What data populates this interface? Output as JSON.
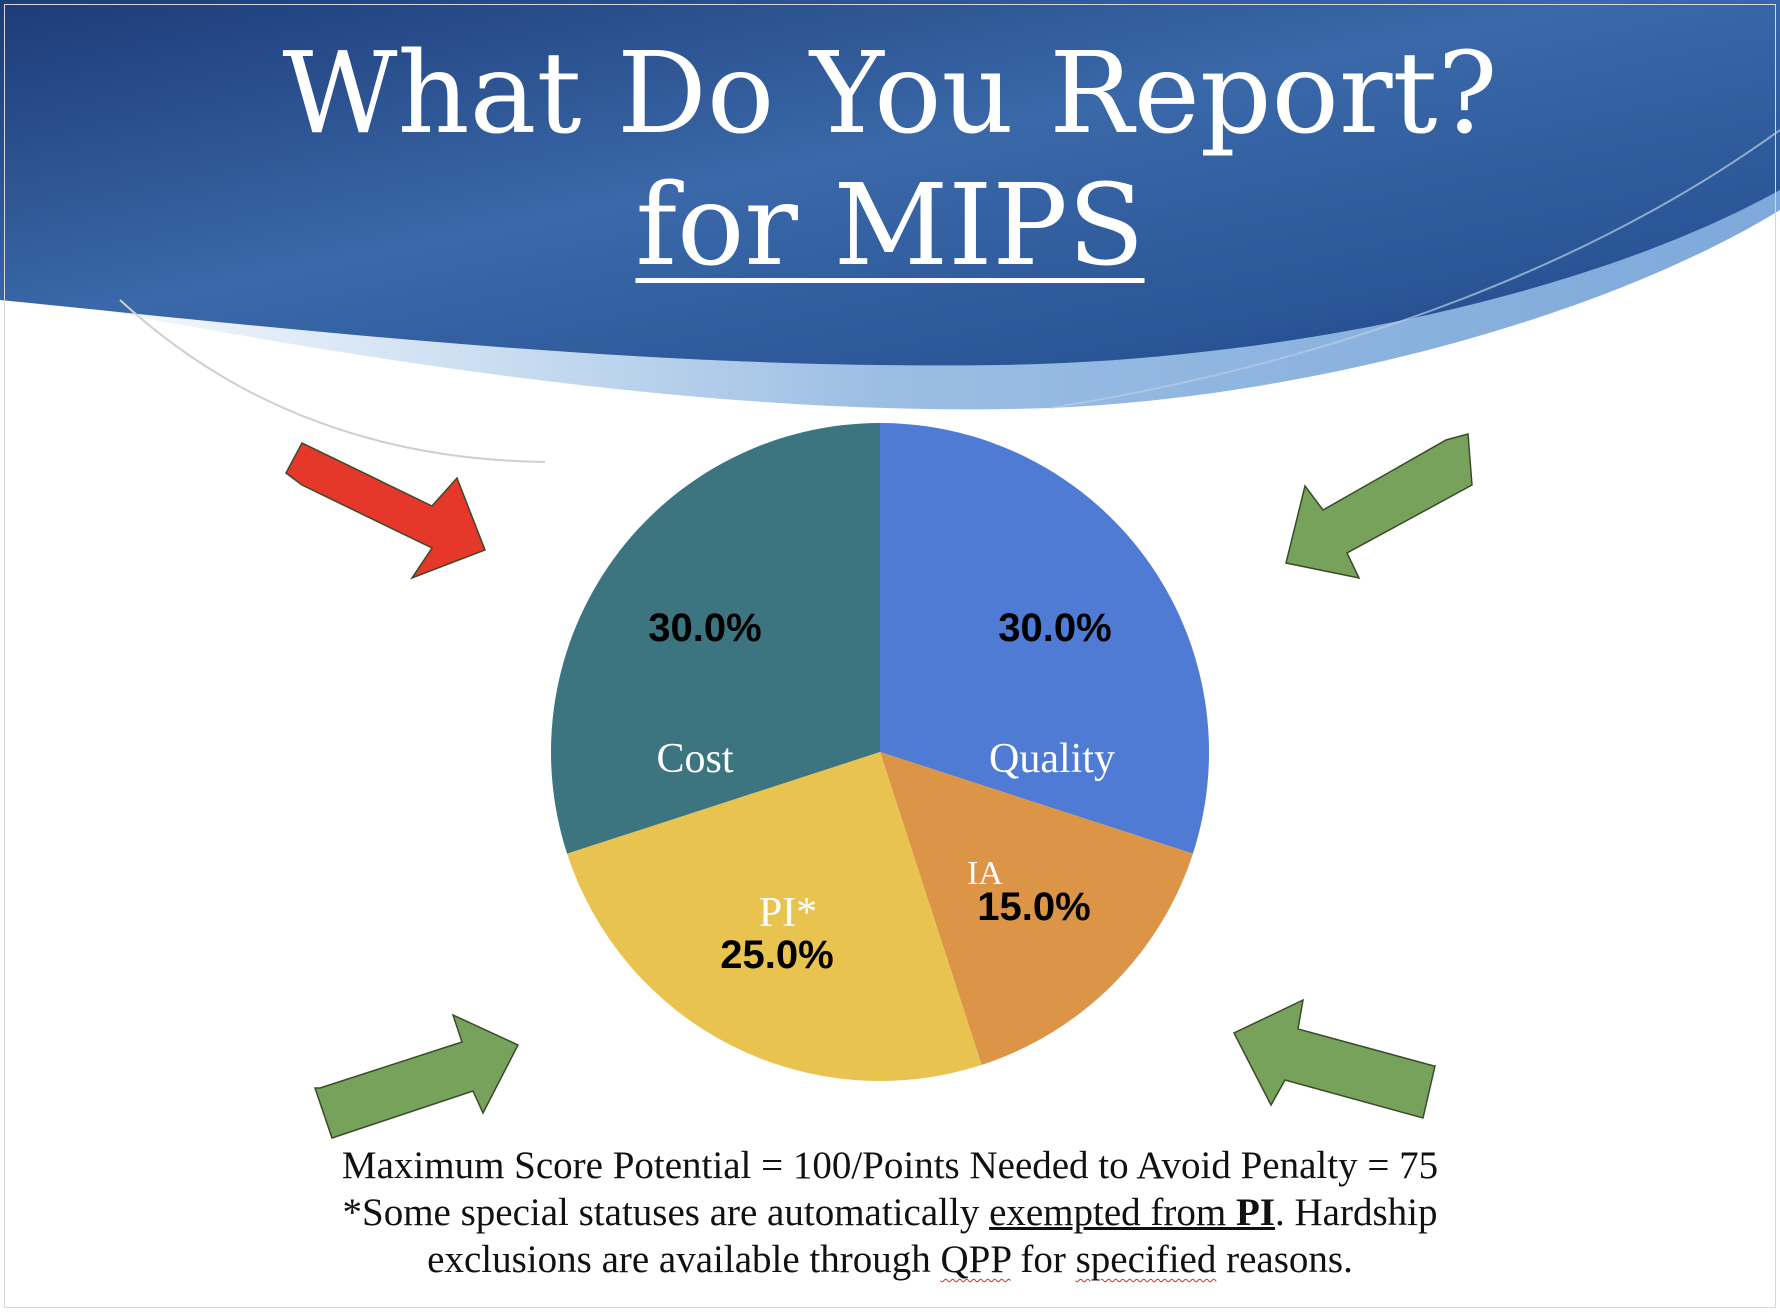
{
  "title": {
    "line1": "What Do You Report?",
    "line2": "for MIPS"
  },
  "colors": {
    "header_dark": "#1f3f7a",
    "header_light": "#7fa8d6",
    "arrow_red": "#e5372a",
    "arrow_green": "#76a25b"
  },
  "chart_data": {
    "type": "pie",
    "slices": [
      {
        "label": "Quality",
        "value": 30.0,
        "value_label": "30.0%",
        "color": "#4f7bd4"
      },
      {
        "label": "IA",
        "value": 15.0,
        "value_label": "15.0%",
        "color": "#dc9447"
      },
      {
        "label": "PI*",
        "value": 25.0,
        "value_label": "25.0%",
        "color": "#e8c350"
      },
      {
        "label": "Cost",
        "value": 30.0,
        "value_label": "30.0%",
        "color": "#3c7480"
      }
    ]
  },
  "arrows": [
    {
      "name": "arrow-top-left",
      "color": "red"
    },
    {
      "name": "arrow-top-right",
      "color": "green"
    },
    {
      "name": "arrow-bottom-left",
      "color": "green"
    },
    {
      "name": "arrow-bottom-right",
      "color": "green"
    }
  ],
  "footer": {
    "line1": "Maximum Score  Potential = 100/Points Needed to Avoid Penalty = 75",
    "line2_a": "*Some special statuses are automatically ",
    "line2_b": "exempted from ",
    "line2_c": "PI",
    "line2_d": ".  Hardship",
    "line3_a": "exclusions are available through ",
    "line3_b": "QPP",
    "line3_c": " for ",
    "line3_d": "specified",
    "line3_e": " reasons."
  }
}
